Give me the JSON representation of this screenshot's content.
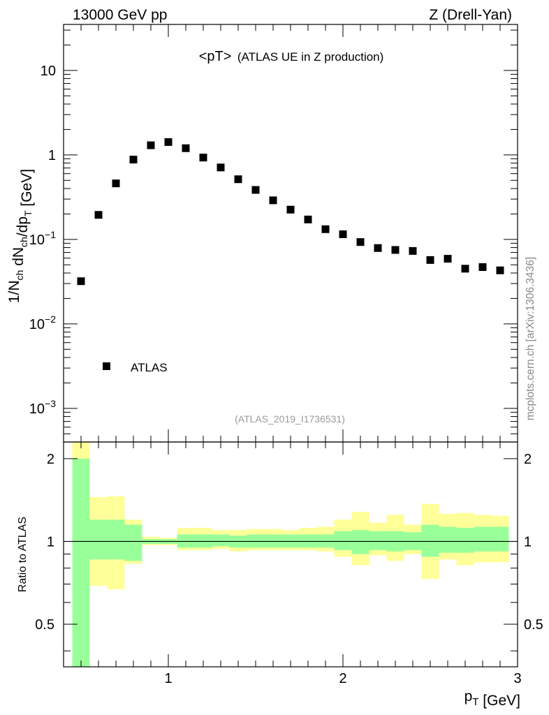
{
  "header": {
    "left": "13000 GeV pp",
    "right": "Z (Drell-Yan)"
  },
  "side_label": "mcplots.cern.ch [arXiv:1306.3436]",
  "chart_data": [
    {
      "type": "scatter",
      "panel": "main",
      "title_main": "<pT>",
      "title_sub": "(ATLAS UE in Z production)",
      "ylabel": "1/N_ch dN_ch/dp_T [GeV]",
      "yscale": "log",
      "ylim": [
        0.0004,
        35
      ],
      "xlim": [
        0.4,
        3.0
      ],
      "y_tick_labels": [
        "10^-3",
        "10^-2",
        "10^-1",
        "1",
        "10"
      ],
      "series": [
        {
          "name": "ATLAS",
          "x": [
            0.5,
            0.6,
            0.7,
            0.8,
            0.9,
            1.0,
            1.1,
            1.2,
            1.3,
            1.4,
            1.5,
            1.6,
            1.7,
            1.8,
            1.9,
            2.0,
            2.1,
            2.2,
            2.3,
            2.4,
            2.5,
            2.6,
            2.7,
            2.8,
            2.9
          ],
          "y": [
            0.032,
            0.195,
            0.46,
            0.88,
            1.3,
            1.42,
            1.2,
            0.93,
            0.71,
            0.515,
            0.385,
            0.29,
            0.225,
            0.172,
            0.132,
            0.115,
            0.093,
            0.079,
            0.075,
            0.073,
            0.057,
            0.059,
            0.045,
            0.047,
            0.043
          ]
        }
      ],
      "legend": "lower-left",
      "analysis_tag": "(ATLAS_2019_I1736531)"
    },
    {
      "type": "area",
      "panel": "ratio",
      "ylabel": "Ratio to ATLAS",
      "xlabel": "p_T [GeV]",
      "xlim": [
        0.4,
        3.0
      ],
      "ylim": [
        0.35,
        2.3
      ],
      "x_tick_labels": [
        "1",
        "2",
        "3"
      ],
      "y_tick_labels": [
        "0.5",
        "1",
        "2"
      ],
      "bin_edges": [
        0.45,
        0.55,
        0.65,
        0.75,
        0.85,
        0.95,
        1.05,
        1.15,
        1.25,
        1.35,
        1.45,
        1.55,
        1.65,
        1.75,
        1.85,
        1.95,
        2.05,
        2.15,
        2.25,
        2.35,
        2.45,
        2.55,
        2.65,
        2.75,
        2.85,
        2.95
      ],
      "band_stat": {
        "name": "stat",
        "color": "#99ff99",
        "upper": [
          2.0,
          1.2,
          1.2,
          1.15,
          1.02,
          1.02,
          1.06,
          1.06,
          1.06,
          1.05,
          1.06,
          1.06,
          1.06,
          1.06,
          1.06,
          1.09,
          1.1,
          1.09,
          1.09,
          1.08,
          1.15,
          1.13,
          1.12,
          1.13,
          1.13
        ],
        "lower": [
          0.33,
          0.86,
          0.86,
          0.85,
          0.98,
          0.98,
          0.95,
          0.95,
          0.96,
          0.95,
          0.95,
          0.95,
          0.95,
          0.95,
          0.95,
          0.93,
          0.9,
          0.93,
          0.92,
          0.93,
          0.88,
          0.91,
          0.91,
          0.92,
          0.92
        ]
      },
      "band_total": {
        "name": "stat+syst",
        "color": "#ffff99",
        "upper": [
          2.3,
          1.45,
          1.46,
          1.2,
          1.04,
          1.03,
          1.12,
          1.12,
          1.1,
          1.1,
          1.11,
          1.11,
          1.1,
          1.12,
          1.13,
          1.2,
          1.28,
          1.17,
          1.25,
          1.15,
          1.37,
          1.26,
          1.27,
          1.25,
          1.24
        ],
        "lower": [
          0.33,
          0.69,
          0.67,
          0.83,
          0.97,
          0.97,
          0.93,
          0.93,
          0.94,
          0.92,
          0.93,
          0.93,
          0.93,
          0.93,
          0.92,
          0.88,
          0.82,
          0.89,
          0.85,
          0.9,
          0.73,
          0.86,
          0.82,
          0.84,
          0.84
        ]
      },
      "reference_line": 1
    }
  ]
}
